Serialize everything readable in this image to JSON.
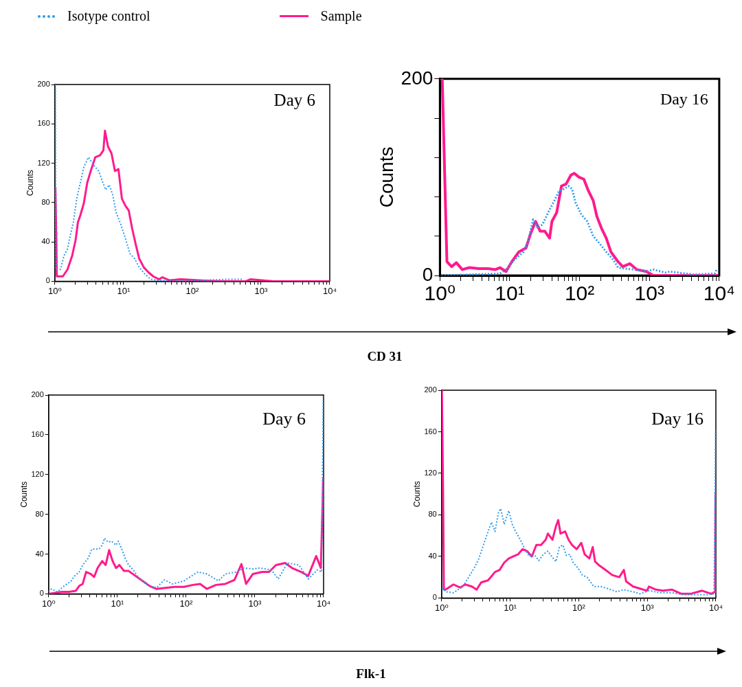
{
  "chart_data": [
    {
      "type": "line",
      "title": "Day 6",
      "xlabel": "CD 31",
      "ylabel": "Counts",
      "log": "x",
      "marker": "none",
      "legend": "top",
      "xlim": [
        1,
        10000
      ],
      "ylim": [
        0,
        200
      ],
      "xticks": [
        {
          "value": 1,
          "label": "10⁰"
        },
        {
          "value": 2,
          "label": null
        },
        {
          "value": 3,
          "label": null
        },
        {
          "value": 4,
          "label": null
        },
        {
          "value": 5,
          "label": null
        },
        {
          "value": 6,
          "label": null
        },
        {
          "value": 7,
          "label": null
        },
        {
          "value": 8,
          "label": null
        },
        {
          "value": 9,
          "label": null
        },
        {
          "value": 10,
          "label": "10¹"
        },
        {
          "value": 20,
          "label": null
        },
        {
          "value": 30,
          "label": null
        },
        {
          "value": 40,
          "label": null
        },
        {
          "value": 50,
          "label": null
        },
        {
          "value": 60,
          "label": null
        },
        {
          "value": 70,
          "label": null
        },
        {
          "value": 80,
          "label": null
        },
        {
          "value": 90,
          "label": null
        },
        {
          "value": 100,
          "label": "10²"
        },
        {
          "value": 200,
          "label": null
        },
        {
          "value": 300,
          "label": null
        },
        {
          "value": 400,
          "label": null
        },
        {
          "value": 500,
          "label": null
        },
        {
          "value": 600,
          "label": null
        },
        {
          "value": 700,
          "label": null
        },
        {
          "value": 800,
          "label": null
        },
        {
          "value": 900,
          "label": null
        },
        {
          "value": 1000,
          "label": "10³"
        },
        {
          "value": 2000,
          "label": null
        },
        {
          "value": 3000,
          "label": null
        },
        {
          "value": 4000,
          "label": null
        },
        {
          "value": 5000,
          "label": null
        },
        {
          "value": 6000,
          "label": null
        },
        {
          "value": 7000,
          "label": null
        },
        {
          "value": 8000,
          "label": null
        },
        {
          "value": 9000,
          "label": null
        },
        {
          "value": 10000,
          "label": "10⁴"
        }
      ],
      "yticks": [
        0,
        40,
        80,
        120,
        160,
        200
      ],
      "series": [
        {
          "name": "Isotype control",
          "color": "#2b9cf2",
          "line_style": "dotted",
          "x": [
            1.02,
            1.04,
            1.21,
            1.36,
            1.53,
            1.65,
            1.86,
            2.09,
            2.35,
            2.64,
            3.08,
            3.46,
            3.88,
            4.36,
            4.9,
            5.5,
            6.18,
            6.95,
            7.8,
            9.1,
            10.6,
            12.4,
            14.5,
            16.9,
            20.6,
            25,
            31.6,
            68,
            322,
            555
          ],
          "values": [
            200,
            12,
            12,
            26,
            33,
            44,
            60,
            84,
            100,
            116,
            126,
            121,
            116,
            112,
            102,
            93,
            98,
            88,
            70,
            58,
            44,
            28,
            23,
            14,
            7,
            2,
            1,
            0,
            2,
            2
          ]
        },
        {
          "name": "Sample",
          "color": "#ff1a8c",
          "line_style": "solid",
          "x": [
            1.02,
            1.05,
            1.07,
            1.12,
            1.31,
            1.53,
            1.79,
            2.01,
            2.17,
            2.35,
            2.64,
            2.96,
            3.33,
            3.88,
            4.54,
            5.09,
            5.37,
            5.94,
            6.68,
            7.5,
            8.43,
            9.47,
            10.6,
            11.9,
            13.4,
            15.1,
            16.9,
            19.8,
            23.1,
            27,
            32.7,
            36.8,
            46,
            68,
            126,
            250,
            600,
            700,
            1515,
            10000
          ],
          "values": [
            95,
            50,
            5,
            5,
            5,
            12,
            26,
            42,
            60,
            67,
            79,
            100,
            112,
            126,
            128,
            133,
            153,
            137,
            130,
            112,
            114,
            84,
            77,
            72,
            53,
            37,
            23,
            14,
            9,
            5,
            2,
            4,
            1,
            2,
            1,
            0,
            0,
            2,
            0,
            0
          ]
        }
      ]
    },
    {
      "type": "line",
      "title": "Day 16",
      "ylabel": "Counts",
      "log": "x",
      "marker": "none",
      "xlim": [
        1,
        10000
      ],
      "ylim": [
        0,
        200
      ],
      "xticks": [
        {
          "value": 1,
          "label": "10⁰"
        },
        {
          "value": 2,
          "label": null
        },
        {
          "value": 3,
          "label": null
        },
        {
          "value": 4,
          "label": null
        },
        {
          "value": 5,
          "label": null
        },
        {
          "value": 6,
          "label": null
        },
        {
          "value": 7,
          "label": null
        },
        {
          "value": 8,
          "label": null
        },
        {
          "value": 9,
          "label": null
        },
        {
          "value": 10,
          "label": "10¹"
        },
        {
          "value": 20,
          "label": null
        },
        {
          "value": 30,
          "label": null
        },
        {
          "value": 40,
          "label": null
        },
        {
          "value": 50,
          "label": null
        },
        {
          "value": 60,
          "label": null
        },
        {
          "value": 70,
          "label": null
        },
        {
          "value": 80,
          "label": null
        },
        {
          "value": 90,
          "label": null
        },
        {
          "value": 100,
          "label": "10²"
        },
        {
          "value": 200,
          "label": null
        },
        {
          "value": 300,
          "label": null
        },
        {
          "value": 400,
          "label": null
        },
        {
          "value": 500,
          "label": null
        },
        {
          "value": 600,
          "label": null
        },
        {
          "value": 700,
          "label": null
        },
        {
          "value": 800,
          "label": null
        },
        {
          "value": 900,
          "label": null
        },
        {
          "value": 1000,
          "label": "10³"
        },
        {
          "value": 2000,
          "label": null
        },
        {
          "value": 3000,
          "label": null
        },
        {
          "value": 4000,
          "label": null
        },
        {
          "value": 5000,
          "label": null
        },
        {
          "value": 6000,
          "label": null
        },
        {
          "value": 7000,
          "label": null
        },
        {
          "value": 8000,
          "label": null
        },
        {
          "value": 9000,
          "label": null
        },
        {
          "value": 10000,
          "label": "10⁴"
        }
      ],
      "yticks": [
        0,
        {
          "value": 40,
          "label": null
        },
        {
          "value": 80,
          "label": null
        },
        {
          "value": 120,
          "label": null
        },
        {
          "value": 160,
          "label": null
        },
        200
      ],
      "series": [
        {
          "color": "#2b9cf2",
          "line_style": "dotted",
          "x": [
            1.05,
            7.27,
            9.18,
            11.6,
            15.8,
            18.5,
            21.6,
            25.2,
            29.5,
            37.2,
            43.5,
            50.8,
            59.4,
            69.4,
            78,
            87.7,
            106,
            129,
            157,
            191,
            241,
            304,
            356,
            449,
            612,
            904,
            1140,
            1680,
            1970,
            4290,
            8630,
            9330
          ],
          "values": [
            0,
            2,
            7,
            16,
            24,
            36,
            57,
            48,
            52,
            67,
            76,
            86,
            88,
            91,
            88,
            74,
            62,
            55,
            40,
            33,
            24,
            16,
            8,
            7,
            6,
            4,
            6,
            3,
            4,
            1,
            2,
            7
          ]
        },
        {
          "color": "#ff1a8c",
          "line_style": "solid",
          "x": [
            1.05,
            1.08,
            1.17,
            1.26,
            1.47,
            1.72,
            2.09,
            2.64,
            3.61,
            4.93,
            6.22,
            7.27,
            8.83,
            10.7,
            13.5,
            17.1,
            20,
            23.4,
            27.3,
            31.8,
            37.2,
            40.2,
            47,
            55,
            64,
            75,
            84,
            98,
            115,
            134,
            157,
            177,
            206,
            241,
            281,
            356,
            415,
            524,
            662,
            904,
            1140,
            1970,
            9330
          ],
          "values": [
            200,
            200,
            103,
            14,
            9,
            13,
            6,
            8,
            7,
            7,
            6,
            8,
            4,
            14,
            24,
            28,
            43,
            55,
            45,
            45,
            38,
            55,
            64,
            91,
            93,
            102,
            104,
            100,
            98,
            86,
            76,
            60,
            48,
            38,
            24,
            14,
            9,
            12,
            6,
            4,
            0,
            0,
            0
          ]
        }
      ]
    },
    {
      "type": "line",
      "title": "Day 6",
      "xlabel": "Flk-1",
      "ylabel": "Counts",
      "log": "x",
      "marker": "none",
      "xlim": [
        1,
        10000
      ],
      "ylim": [
        0,
        200
      ],
      "xticks": [
        {
          "value": 1,
          "label": "10⁰"
        },
        {
          "value": 2,
          "label": null
        },
        {
          "value": 3,
          "label": null
        },
        {
          "value": 4,
          "label": null
        },
        {
          "value": 5,
          "label": null
        },
        {
          "value": 6,
          "label": null
        },
        {
          "value": 7,
          "label": null
        },
        {
          "value": 8,
          "label": null
        },
        {
          "value": 9,
          "label": null
        },
        {
          "value": 10,
          "label": "10¹"
        },
        {
          "value": 20,
          "label": null
        },
        {
          "value": 30,
          "label": null
        },
        {
          "value": 40,
          "label": null
        },
        {
          "value": 50,
          "label": null
        },
        {
          "value": 60,
          "label": null
        },
        {
          "value": 70,
          "label": null
        },
        {
          "value": 80,
          "label": null
        },
        {
          "value": 90,
          "label": null
        },
        {
          "value": 100,
          "label": "10²"
        },
        {
          "value": 200,
          "label": null
        },
        {
          "value": 300,
          "label": null
        },
        {
          "value": 400,
          "label": null
        },
        {
          "value": 500,
          "label": null
        },
        {
          "value": 600,
          "label": null
        },
        {
          "value": 700,
          "label": null
        },
        {
          "value": 800,
          "label": null
        },
        {
          "value": 900,
          "label": null
        },
        {
          "value": 1000,
          "label": "10³"
        },
        {
          "value": 2000,
          "label": null
        },
        {
          "value": 3000,
          "label": null
        },
        {
          "value": 4000,
          "label": null
        },
        {
          "value": 5000,
          "label": null
        },
        {
          "value": 6000,
          "label": null
        },
        {
          "value": 7000,
          "label": null
        },
        {
          "value": 8000,
          "label": null
        },
        {
          "value": 9000,
          "label": null
        },
        {
          "value": 10000,
          "label": "10⁴"
        }
      ],
      "yticks": [
        0,
        40,
        80,
        120,
        160,
        200
      ],
      "series": [
        {
          "color": "#2b9cf2",
          "line_style": "dotted",
          "x": [
            1,
            1.1,
            1.34,
            1.69,
            2.13,
            2.39,
            2.79,
            3.13,
            3.79,
            4.26,
            5.37,
            6.03,
            6.5,
            7.31,
            8.2,
            9.57,
            10.3,
            11.6,
            13,
            14.6,
            17.1,
            19.9,
            23.2,
            29.3,
            36.9,
            48.3,
            63.2,
            93,
            148,
            201,
            295,
            372,
            547,
            689,
            938,
            1180,
            1740,
            2190,
            2980,
            4390,
            5970,
            8120,
            9330,
            9900
          ],
          "values": [
            2,
            5,
            2,
            8,
            13,
            18,
            22,
            29,
            36,
            45,
            45,
            49,
            56,
            52,
            53,
            49,
            53,
            45,
            36,
            29,
            24,
            17,
            13,
            8,
            6,
            14,
            10,
            13,
            22,
            20,
            13,
            20,
            22,
            26,
            25,
            26,
            24,
            15,
            31,
            29,
            15,
            24,
            22,
            200
          ]
        },
        {
          "color": "#ff1a8c",
          "line_style": "solid",
          "x": [
            1,
            1.24,
            1.56,
            1.97,
            2.48,
            2.79,
            3.13,
            3.51,
            4.1,
            4.6,
            5.16,
            6.03,
            6.76,
            7.59,
            8.53,
            9.57,
            10.7,
            12.5,
            14.6,
            18.4,
            23.2,
            29.3,
            36.9,
            50.1,
            68.2,
            93,
            126,
            160,
            201,
            273,
            372,
            506,
            638,
            745,
            938,
            1280,
            1610,
            2030,
            2760,
            3480,
            4730,
            5970,
            7820,
            9120,
            9900
          ],
          "values": [
            0,
            1,
            2,
            2,
            3,
            8,
            10,
            22,
            20,
            17,
            26,
            33,
            29,
            44,
            33,
            26,
            29,
            23,
            23,
            18,
            13,
            8,
            5,
            6,
            7,
            7,
            9,
            10,
            5,
            9,
            10,
            14,
            30,
            10,
            20,
            22,
            22,
            29,
            31,
            26,
            22,
            18,
            38,
            26,
            116
          ]
        }
      ]
    },
    {
      "type": "line",
      "title": "Day 16",
      "ylabel": "Counts",
      "log": "x",
      "marker": "none",
      "xlim": [
        1,
        10000
      ],
      "ylim": [
        0,
        200
      ],
      "xticks": [
        {
          "value": 1,
          "label": "10⁰"
        },
        {
          "value": 2,
          "label": null
        },
        {
          "value": 3,
          "label": null
        },
        {
          "value": 4,
          "label": null
        },
        {
          "value": 5,
          "label": null
        },
        {
          "value": 6,
          "label": null
        },
        {
          "value": 7,
          "label": null
        },
        {
          "value": 8,
          "label": null
        },
        {
          "value": 9,
          "label": null
        },
        {
          "value": 10,
          "label": "10¹"
        },
        {
          "value": 20,
          "label": null
        },
        {
          "value": 30,
          "label": null
        },
        {
          "value": 40,
          "label": null
        },
        {
          "value": 50,
          "label": null
        },
        {
          "value": 60,
          "label": null
        },
        {
          "value": 70,
          "label": null
        },
        {
          "value": 80,
          "label": null
        },
        {
          "value": 90,
          "label": null
        },
        {
          "value": 100,
          "label": "10²"
        },
        {
          "value": 200,
          "label": null
        },
        {
          "value": 300,
          "label": null
        },
        {
          "value": 400,
          "label": null
        },
        {
          "value": 500,
          "label": null
        },
        {
          "value": 600,
          "label": null
        },
        {
          "value": 700,
          "label": null
        },
        {
          "value": 800,
          "label": null
        },
        {
          "value": 900,
          "label": null
        },
        {
          "value": 1000,
          "label": "10³"
        },
        {
          "value": 2000,
          "label": null
        },
        {
          "value": 3000,
          "label": null
        },
        {
          "value": 4000,
          "label": null
        },
        {
          "value": 5000,
          "label": null
        },
        {
          "value": 6000,
          "label": null
        },
        {
          "value": 7000,
          "label": null
        },
        {
          "value": 8000,
          "label": null
        },
        {
          "value": 9000,
          "label": null
        },
        {
          "value": 10000,
          "label": "10⁴"
        }
      ],
      "yticks": [
        0,
        40,
        80,
        120,
        160,
        200
      ],
      "series": [
        {
          "color": "#2b9cf2",
          "line_style": "dotted",
          "x": [
            1.02,
            1.14,
            1.49,
            2.04,
            2.38,
            3,
            3.5,
            4.08,
            4.76,
            5.35,
            6.01,
            6.74,
            7.28,
            8.18,
            9.55,
            10.7,
            12,
            14.1,
            16.4,
            19.1,
            22.3,
            26.1,
            30.4,
            35.5,
            41.4,
            46.5,
            52.2,
            58.6,
            65.9,
            74,
            83,
            97,
            113,
            132,
            166,
            210,
            265,
            361,
            455,
            620,
            782,
            1060,
            1570,
            2300,
            3390,
            4990,
            7350,
            9400,
            9900
          ],
          "values": [
            10,
            6,
            5,
            11,
            18,
            29,
            38,
            51,
            64,
            73,
            64,
            82,
            86,
            71,
            84,
            71,
            64,
            56,
            47,
            40,
            42,
            36,
            42,
            45,
            39,
            35,
            49,
            51,
            41,
            42,
            34,
            29,
            22,
            20,
            11,
            11,
            9,
            6,
            8,
            6,
            4,
            7,
            5,
            5,
            3,
            3,
            3,
            4,
            161
          ]
        },
        {
          "color": "#ff1a8c",
          "line_style": "solid",
          "x": [
            1.01,
            1.05,
            1.08,
            1.14,
            1.49,
            1.88,
            2.2,
            2.77,
            3.24,
            3.78,
            4.76,
            6.01,
            7.01,
            8.18,
            9.55,
            11.1,
            13,
            15.2,
            17.7,
            20.7,
            24.1,
            28.2,
            32.9,
            35.5,
            41.4,
            46.5,
            50.2,
            54.3,
            63.4,
            71.1,
            80,
            93.3,
            109,
            122,
            143,
            160,
            173,
            202,
            245,
            309,
            390,
            455,
            491,
            620,
            782,
            985,
            1060,
            1340,
            1690,
            2300,
            3140,
            4280,
            6290,
            8570,
            9770,
            9900
          ],
          "values": [
            200,
            104,
            8,
            8,
            13,
            10,
            13,
            11,
            8,
            15,
            17,
            25,
            27,
            34,
            38,
            40,
            42,
            47,
            45,
            40,
            51,
            51,
            56,
            62,
            56,
            69,
            75,
            62,
            64,
            56,
            51,
            47,
            53,
            42,
            38,
            49,
            35,
            31,
            27,
            22,
            20,
            27,
            16,
            11,
            9,
            7,
            11,
            8,
            7,
            8,
            4,
            4,
            7,
            4,
            6,
            102
          ]
        }
      ]
    }
  ]
}
